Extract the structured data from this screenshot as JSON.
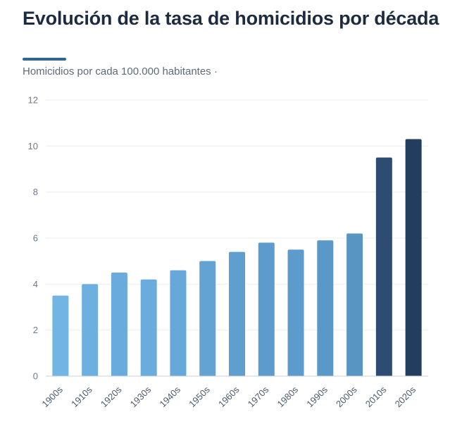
{
  "header": {
    "title": "Evolución de la tasa de homicidios por década",
    "subtitle": "Homicidios por cada 100.000 habitantes ·"
  },
  "chart_data": {
    "type": "bar",
    "title": "Evolución de la tasa de homicidios por década",
    "subtitle": "Homicidios por cada 100.000 habitantes ·",
    "xlabel": "",
    "ylabel": "",
    "categories": [
      "1900s",
      "1910s",
      "1920s",
      "1930s",
      "1940s",
      "1950s",
      "1960s",
      "1970s",
      "1980s",
      "1990s",
      "2000s",
      "2010s",
      "2020s"
    ],
    "values": [
      3.5,
      4.0,
      4.5,
      4.2,
      4.6,
      5.0,
      5.4,
      5.8,
      5.5,
      5.9,
      6.2,
      9.5,
      10.3
    ],
    "ylim": [
      0,
      12
    ],
    "yticks": [
      0,
      2,
      4,
      6,
      8,
      10,
      12
    ],
    "grid": true,
    "colors": [
      "#72b4e4",
      "#6db0e0",
      "#69abdc",
      "#6aacdc",
      "#66a8d9",
      "#62a3d4",
      "#5f9fd0",
      "#5c9bcb",
      "#5c9bcb",
      "#5a98c7",
      "#5895c3",
      "#2e4c71",
      "#223d5f"
    ],
    "grid_color": "#ebeef2",
    "axis_color": "#c9d0d8"
  }
}
